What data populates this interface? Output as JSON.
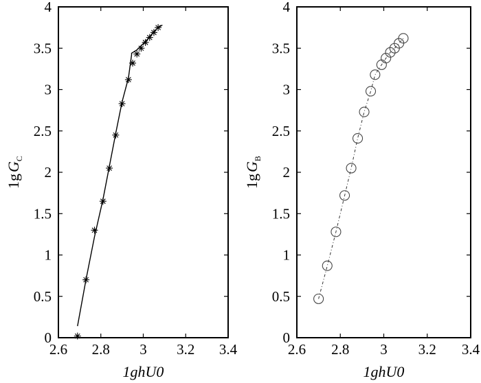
{
  "chart_data": [
    {
      "type": "line",
      "marker": "star",
      "line_style": "solid",
      "xlabel": "1ghU0",
      "ylabel_main": "1g",
      "ylabel_var": "G",
      "ylabel_sub": "C",
      "xlim": [
        2.6,
        3.4
      ],
      "ylim": [
        0,
        4
      ],
      "xticks": [
        2.6,
        2.8,
        3,
        3.2,
        3.4
      ],
      "xtick_labels": [
        "2.6",
        "2.8",
        "3",
        "3.2",
        "3.4"
      ],
      "yticks": [
        0,
        0.5,
        1,
        1.5,
        2,
        2.5,
        3,
        3.5,
        4
      ],
      "ytick_labels": [
        "0",
        "0.5",
        "1",
        "1.5",
        "2",
        "2.5",
        "3",
        "3.5",
        "4"
      ],
      "grid": false,
      "points": {
        "x": [
          2.69,
          2.73,
          2.77,
          2.81,
          2.84,
          2.87,
          2.9,
          2.93,
          2.95,
          2.97,
          2.99,
          3.01,
          3.03,
          3.05,
          3.07
        ],
        "y": [
          0.02,
          0.7,
          1.3,
          1.65,
          2.05,
          2.45,
          2.83,
          3.12,
          3.32,
          3.43,
          3.5,
          3.57,
          3.63,
          3.69,
          3.75
        ]
      },
      "line": {
        "x": [
          2.69,
          2.73,
          2.77,
          2.81,
          2.84,
          2.87,
          2.9,
          2.93,
          2.945,
          2.945,
          2.97,
          2.99,
          3.01,
          3.03,
          3.05,
          3.07,
          3.09
        ],
        "y": [
          0.14,
          0.7,
          1.22,
          1.67,
          2.07,
          2.47,
          2.85,
          3.14,
          3.42,
          3.44,
          3.48,
          3.53,
          3.58,
          3.64,
          3.7,
          3.75,
          3.78
        ]
      }
    },
    {
      "type": "line",
      "marker": "circle",
      "line_style": "dashdot",
      "xlabel": "1ghU0",
      "ylabel_main": "1g",
      "ylabel_var": "G",
      "ylabel_sub": "B",
      "xlim": [
        2.6,
        3.4
      ],
      "ylim": [
        0,
        4
      ],
      "xticks": [
        2.6,
        2.8,
        3,
        3.2,
        3.4
      ],
      "xtick_labels": [
        "2.6",
        "2.8",
        "3",
        "3.2",
        "3.4"
      ],
      "yticks": [
        0,
        0.5,
        1,
        1.5,
        2,
        2.5,
        3,
        3.5,
        4
      ],
      "ytick_labels": [
        "0",
        "0.5",
        "1",
        "1.5",
        "2",
        "2.5",
        "3",
        "3.5",
        "4"
      ],
      "grid": false,
      "points": {
        "x": [
          2.7,
          2.74,
          2.78,
          2.82,
          2.85,
          2.88,
          2.91,
          2.94,
          2.96,
          2.99,
          3.01,
          3.03,
          3.05,
          3.07,
          3.09
        ],
        "y": [
          0.47,
          0.87,
          1.28,
          1.72,
          2.05,
          2.41,
          2.73,
          2.98,
          3.18,
          3.3,
          3.38,
          3.45,
          3.5,
          3.56,
          3.62
        ]
      }
    }
  ]
}
